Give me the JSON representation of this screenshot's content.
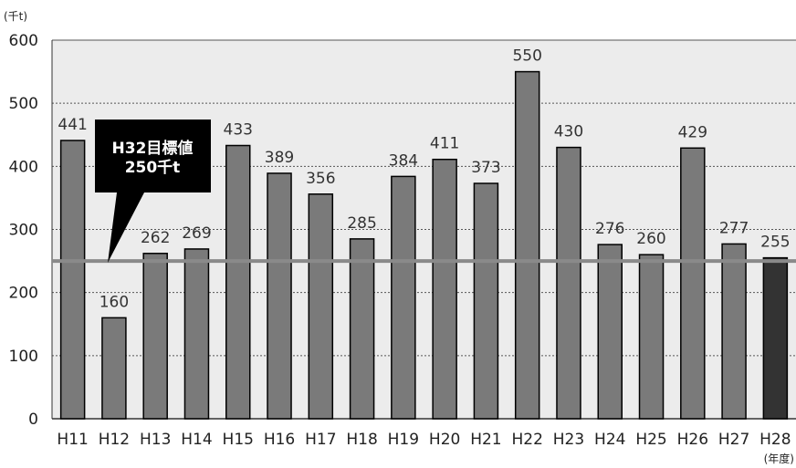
{
  "chart_data": {
    "type": "bar",
    "yunit": "(千t)",
    "xunit": "(年度)",
    "categories": [
      "H11",
      "H12",
      "H13",
      "H14",
      "H15",
      "H16",
      "H17",
      "H18",
      "H19",
      "H20",
      "H21",
      "H22",
      "H23",
      "H24",
      "H25",
      "H26",
      "H27",
      "H28"
    ],
    "values": [
      441,
      160,
      262,
      269,
      433,
      389,
      356,
      285,
      384,
      411,
      373,
      550,
      430,
      276,
      260,
      429,
      277,
      255
    ],
    "value_labels": [
      "441",
      "160",
      "262",
      "269",
      "433",
      "389",
      "356",
      "285",
      "384",
      "411",
      "373",
      "550",
      "430",
      "276",
      "260",
      "429",
      "277",
      "255"
    ],
    "yticks": [
      "0",
      "100",
      "200",
      "300",
      "400",
      "500",
      "600"
    ],
    "ylim": [
      0,
      600
    ],
    "grid": true,
    "target": {
      "value": 250,
      "label_line1": "H32目標値",
      "label_line2": "250千t"
    },
    "colors": {
      "bar": "#7a7a7a",
      "last_bar": "#333333",
      "plot_bg": "#ececec",
      "target_line": "#8a8a8a",
      "callout": "#000000"
    }
  }
}
